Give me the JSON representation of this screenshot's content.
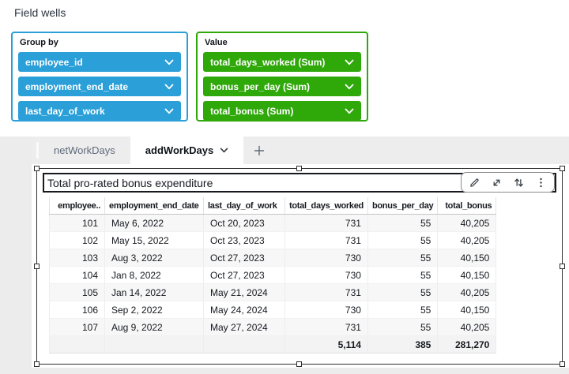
{
  "panel": {
    "title": "Field wells"
  },
  "field_wells": {
    "group_by": {
      "label": "Group by",
      "accent_color": "#2A9FD8",
      "fields": [
        "employee_id",
        "employment_end_date",
        "last_day_of_work"
      ]
    },
    "value": {
      "label": "Value",
      "accent_color": "#2FA80A",
      "fields": [
        "total_days_worked (Sum)",
        "bonus_per_day (Sum)",
        "total_bonus (Sum)"
      ]
    }
  },
  "sheet_tabs": {
    "tabs": [
      {
        "label": "netWorkDays",
        "active": false
      },
      {
        "label": "addWorkDays",
        "active": true
      }
    ]
  },
  "visual": {
    "title": "Total pro-rated bonus expenditure",
    "toolbar_icons": [
      "edit-icon",
      "maximize-icon",
      "swap-arrows-icon",
      "kebab-menu-icon"
    ]
  },
  "chart_data": {
    "type": "table",
    "columns": [
      {
        "label": "employee..",
        "align": "right"
      },
      {
        "label": "employment_end_date",
        "align": "left"
      },
      {
        "label": "last_day_of_work",
        "align": "left"
      },
      {
        "label": "total_days_worked",
        "align": "right"
      },
      {
        "label": "bonus_per_day",
        "align": "right"
      },
      {
        "label": "total_bonus",
        "align": "right"
      }
    ],
    "rows": [
      [
        "101",
        "May 6, 2022",
        "Oct 20, 2023",
        "731",
        "55",
        "40,205"
      ],
      [
        "102",
        "May 15, 2022",
        "Oct 23, 2023",
        "731",
        "55",
        "40,205"
      ],
      [
        "103",
        "Aug 3, 2022",
        "Oct 27, 2023",
        "730",
        "55",
        "40,150"
      ],
      [
        "104",
        "Jan 8, 2022",
        "Oct 27, 2023",
        "730",
        "55",
        "40,150"
      ],
      [
        "105",
        "Jan 14, 2022",
        "May 21, 2024",
        "731",
        "55",
        "40,205"
      ],
      [
        "106",
        "Sep 2, 2022",
        "May 24, 2024",
        "730",
        "55",
        "40,150"
      ],
      [
        "107",
        "Aug 9, 2022",
        "May 27, 2024",
        "731",
        "55",
        "40,205"
      ]
    ],
    "totals": [
      "",
      "",
      "",
      "5,114",
      "385",
      "281,270"
    ]
  }
}
